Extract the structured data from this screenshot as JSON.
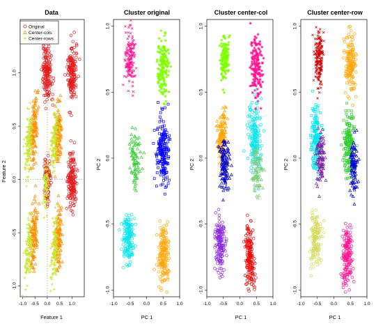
{
  "chart_data": [
    {
      "type": "scatter",
      "title": "Data",
      "xlabel": "Feature 1",
      "ylabel": "Feature 2",
      "xlim": [
        -1.1,
        1.5
      ],
      "ylim": [
        -1.1,
        1.5
      ],
      "xticks": [
        "-1.0",
        "-0.5",
        "0.0",
        "0.5",
        "1.0"
      ],
      "xtick_values": [
        -1.0,
        -0.5,
        0.0,
        0.5,
        1.0
      ],
      "yticks": [
        "-1.0",
        "-0.5",
        "0.0",
        "0.5",
        "1.0"
      ],
      "ytick_values": [
        -1.0,
        -0.5,
        0.0,
        0.5,
        1.0
      ],
      "legend": {
        "position": "top-left",
        "entries": [
          {
            "label": "Original",
            "marker": "o",
            "color": "#e41a1c"
          },
          {
            "label": "Center-cols",
            "marker": "triangle",
            "color": "#ff8c00"
          },
          {
            "label": "Center-rows",
            "marker": "plus",
            "color": "#c8e632"
          }
        ]
      },
      "guides": [
        "dotted cross at (0, 0)"
      ],
      "series": [
        {
          "name": "Original",
          "marker": "o",
          "color": "#e41a1c",
          "clusters": [
            {
              "x": 0.0,
              "y": 1.0,
              "sx": 0.09,
              "sy": 0.13,
              "tilt": 0.0,
              "n": 170
            },
            {
              "x": 1.0,
              "y": 1.0,
              "sx": 0.09,
              "sy": 0.13,
              "tilt": 0.0,
              "n": 170
            },
            {
              "x": 1.0,
              "y": 0.0,
              "sx": 0.09,
              "sy": 0.13,
              "tilt": 0.0,
              "n": 170
            },
            {
              "x": 0.0,
              "y": 0.0,
              "sx": 0.06,
              "sy": 0.12,
              "tilt": 0.0,
              "n": 90
            }
          ]
        },
        {
          "name": "Center-cols",
          "marker": "triangle",
          "color": "#ff8c00",
          "clusters": [
            {
              "x": -0.55,
              "y": 0.45,
              "sx": 0.07,
              "sy": 0.15,
              "tilt": 0.3,
              "n": 130
            },
            {
              "x": 0.45,
              "y": 0.45,
              "sx": 0.07,
              "sy": 0.15,
              "tilt": 0.3,
              "n": 130
            },
            {
              "x": -0.55,
              "y": -0.55,
              "sx": 0.07,
              "sy": 0.15,
              "tilt": 0.3,
              "n": 130
            },
            {
              "x": 0.45,
              "y": -0.55,
              "sx": 0.07,
              "sy": 0.15,
              "tilt": 0.3,
              "n": 130
            }
          ]
        },
        {
          "name": "Center-rows",
          "marker": "plus",
          "color": "#c8e632",
          "clusters": [
            {
              "x": -0.75,
              "y": 0.35,
              "sx": 0.07,
              "sy": 0.15,
              "tilt": 0.3,
              "n": 130
            },
            {
              "x": 0.3,
              "y": 0.35,
              "sx": 0.07,
              "sy": 0.15,
              "tilt": 0.3,
              "n": 130
            },
            {
              "x": -0.75,
              "y": -0.65,
              "sx": 0.07,
              "sy": 0.15,
              "tilt": 0.3,
              "n": 130
            },
            {
              "x": 0.3,
              "y": -0.65,
              "sx": 0.07,
              "sy": 0.15,
              "tilt": 0.3,
              "n": 130
            },
            {
              "x": -0.05,
              "y": -0.05,
              "sx": 0.05,
              "sy": 0.12,
              "tilt": 0.3,
              "n": 80
            }
          ]
        }
      ]
    },
    {
      "type": "scatter",
      "title": "Cluster original",
      "xlabel": "PC 1",
      "ylabel": "PC 2",
      "xlim": [
        -1.0,
        1.0
      ],
      "ylim": [
        -1.05,
        1.05
      ],
      "xticks": [
        "-1.0",
        "-0.5",
        "0.0",
        "0.5",
        "1.0"
      ],
      "xtick_values": [
        -1.0,
        -0.5,
        0.0,
        0.5,
        1.0
      ],
      "yticks": [
        "-1.0",
        "-0.5",
        "0.0",
        "0.5",
        "1.0"
      ],
      "ytick_values": [
        -1.0,
        -0.5,
        0.0,
        0.5,
        1.0
      ],
      "series": [
        {
          "color": "#ff1493",
          "marker": "x",
          "clusters": [
            {
              "x": -0.5,
              "y": 0.75,
              "sx": 0.08,
              "sy": 0.11,
              "n": 150
            }
          ]
        },
        {
          "color": "#7fff00",
          "marker": "*",
          "clusters": [
            {
              "x": 0.5,
              "y": 0.7,
              "sx": 0.08,
              "sy": 0.12,
              "n": 170
            }
          ]
        },
        {
          "color": "#cc0000",
          "marker": "+",
          "clusters": [
            {
              "x": -0.55,
              "y": 0.15,
              "sx": 0.09,
              "sy": 0.11,
              "n": 170
            }
          ]
        },
        {
          "color": "#32cd32",
          "marker": "triangle",
          "clusters": [
            {
              "x": -0.35,
              "y": 0.0,
              "sx": 0.08,
              "sy": 0.1,
              "n": 80
            }
          ]
        },
        {
          "color": "#0000ff",
          "marker": "square",
          "clusters": [
            {
              "x": 0.5,
              "y": 0.05,
              "sx": 0.09,
              "sy": 0.14,
              "n": 190
            }
          ]
        },
        {
          "color": "#00e5ee",
          "marker": "o",
          "clusters": [
            {
              "x": -0.55,
              "y": -0.6,
              "sx": 0.08,
              "sy": 0.1,
              "n": 160
            }
          ]
        },
        {
          "color": "#ffa500",
          "marker": "o",
          "clusters": [
            {
              "x": 0.5,
              "y": -0.75,
              "sx": 0.08,
              "sy": 0.11,
              "n": 170
            }
          ]
        }
      ]
    },
    {
      "type": "scatter",
      "title": "Cluster center-col",
      "xlabel": "PC 1",
      "ylabel": "PC 2",
      "xlim": [
        -1.0,
        1.0
      ],
      "ylim": [
        -1.05,
        1.05
      ],
      "xticks": [
        "-1.0",
        "-0.5",
        "0.0",
        "0.5",
        "1.0"
      ],
      "xtick_values": [
        -1.0,
        -0.5,
        0.0,
        0.5,
        1.0
      ],
      "yticks": [
        "-1.0",
        "-0.5",
        "0.0",
        "0.5",
        "1.0"
      ],
      "ytick_values": [
        -1.0,
        -0.5,
        0.0,
        0.5,
        1.0
      ],
      "series": [
        {
          "color": "#7fff00",
          "marker": "*",
          "clusters": [
            {
              "x": -0.45,
              "y": 0.75,
              "sx": 0.07,
              "sy": 0.09,
              "n": 140
            }
          ]
        },
        {
          "color": "#ff1493",
          "marker": "*",
          "clusters": [
            {
              "x": 0.5,
              "y": 0.7,
              "sx": 0.08,
              "sy": 0.11,
              "n": 170
            }
          ]
        },
        {
          "color": "#ffa500",
          "marker": "triangle",
          "clusters": [
            {
              "x": -0.55,
              "y": 0.15,
              "sx": 0.08,
              "sy": 0.1,
              "n": 140
            }
          ]
        },
        {
          "color": "#00e5ee",
          "marker": "o",
          "clusters": [
            {
              "x": 0.45,
              "y": 0.15,
              "sx": 0.09,
              "sy": 0.13,
              "n": 170
            }
          ]
        },
        {
          "color": "#0000cd",
          "marker": "triangle",
          "clusters": [
            {
              "x": -0.45,
              "y": -0.05,
              "sx": 0.08,
              "sy": 0.1,
              "n": 120
            }
          ]
        },
        {
          "color": "#7ccd7c",
          "marker": "triangle",
          "clusters": [
            {
              "x": 0.5,
              "y": -0.1,
              "sx": 0.07,
              "sy": 0.1,
              "n": 80
            }
          ]
        },
        {
          "color": "#8a2be2",
          "marker": "o",
          "clusters": [
            {
              "x": -0.6,
              "y": -0.65,
              "sx": 0.08,
              "sy": 0.1,
              "n": 160
            }
          ]
        },
        {
          "color": "#ee0000",
          "marker": "o",
          "clusters": [
            {
              "x": 0.3,
              "y": -0.75,
              "sx": 0.07,
              "sy": 0.12,
              "n": 160
            }
          ]
        }
      ]
    },
    {
      "type": "scatter",
      "title": "Cluster center-row",
      "xlabel": "PC 1",
      "ylabel": "PC 2",
      "xlim": [
        -1.0,
        1.0
      ],
      "ylim": [
        -1.05,
        1.05
      ],
      "xticks": [
        "-1.0",
        "-0.5",
        "0.0",
        "0.5",
        "1.0"
      ],
      "xtick_values": [
        -1.0,
        -0.5,
        0.0,
        0.5,
        1.0
      ],
      "yticks": [
        "-1.0",
        "-0.5",
        "0.0",
        "0.5",
        "1.0"
      ],
      "ytick_values": [
        -1.0,
        -0.5,
        0.0,
        0.5,
        1.0
      ],
      "series": [
        {
          "color": "#cc0000",
          "marker": "x",
          "clusters": [
            {
              "x": -0.45,
              "y": 0.75,
              "sx": 0.07,
              "sy": 0.11,
              "n": 160
            }
          ]
        },
        {
          "color": "#ffa500",
          "marker": "o",
          "clusters": [
            {
              "x": 0.5,
              "y": 0.7,
              "sx": 0.08,
              "sy": 0.11,
              "n": 160
            }
          ]
        },
        {
          "color": "#00e5ee",
          "marker": "square",
          "clusters": [
            {
              "x": -0.55,
              "y": 0.15,
              "sx": 0.08,
              "sy": 0.12,
              "n": 160
            }
          ]
        },
        {
          "color": "#32cd32",
          "marker": "square",
          "clusters": [
            {
              "x": 0.45,
              "y": 0.1,
              "sx": 0.08,
              "sy": 0.12,
              "n": 180
            }
          ]
        },
        {
          "color": "#7b1fa2",
          "marker": "triangle",
          "clusters": [
            {
              "x": -0.4,
              "y": 0.0,
              "sx": 0.07,
              "sy": 0.1,
              "n": 90
            }
          ]
        },
        {
          "color": "#0000cd",
          "marker": "triangle",
          "clusters": [
            {
              "x": 0.6,
              "y": -0.05,
              "sx": 0.06,
              "sy": 0.1,
              "n": 90
            }
          ]
        },
        {
          "color": "#d4d95a",
          "marker": "o",
          "clusters": [
            {
              "x": -0.55,
              "y": -0.6,
              "sx": 0.08,
              "sy": 0.11,
              "n": 150
            }
          ]
        },
        {
          "color": "#ff1493",
          "marker": "o",
          "clusters": [
            {
              "x": 0.4,
              "y": -0.75,
              "sx": 0.08,
              "sy": 0.12,
              "n": 170
            }
          ]
        }
      ]
    }
  ]
}
